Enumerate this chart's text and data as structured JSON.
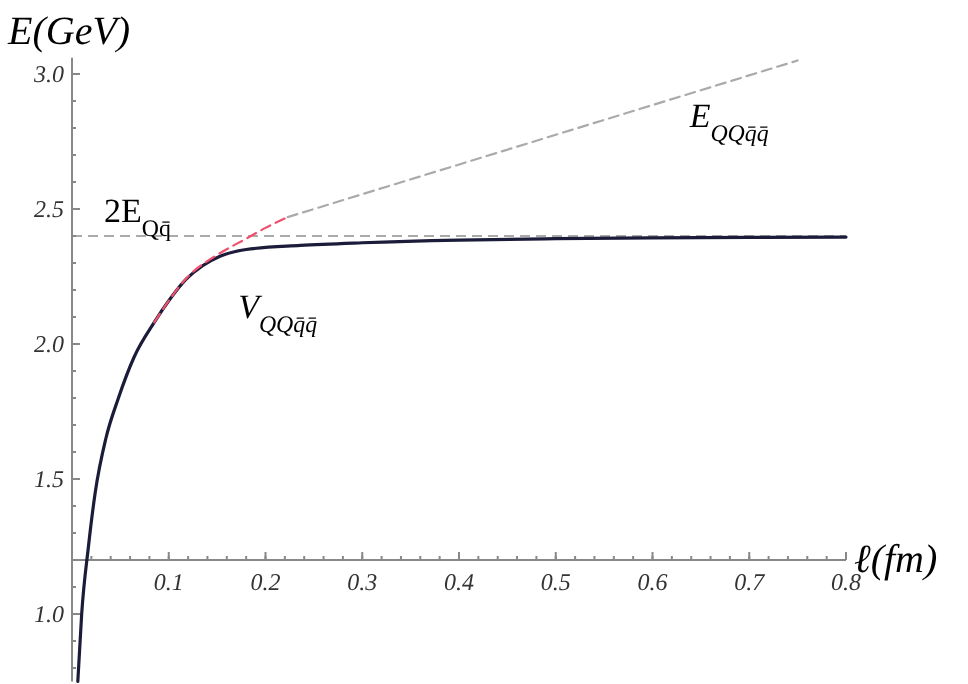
{
  "chart_data": {
    "type": "line",
    "xlabel": "ℓ(fm)",
    "ylabel": "E(GeV)",
    "xlim": [
      0,
      0.8
    ],
    "ylim": [
      0.75,
      3.06
    ],
    "xticks": [
      0.1,
      0.2,
      0.3,
      0.4,
      0.5,
      0.6,
      0.7,
      0.8
    ],
    "yticks": [
      {
        "value": 1,
        "label": "1.0"
      },
      1.5,
      {
        "value": 2,
        "label": "2.0"
      },
      2.5,
      {
        "value": 3,
        "label": "3.0"
      }
    ],
    "grid": false,
    "marker": "none",
    "ref_lines": [
      {
        "axis": "y",
        "value": 2.4,
        "label": "2E$_{Qq̄}$",
        "color": "#aaaaaa",
        "line_style": "dashed"
      }
    ],
    "series": [
      {
        "name": "V$_{QQq̄q̄}$",
        "color": "#1b1b3a",
        "line_style": "solid",
        "x": [
          0.006,
          0.01,
          0.017,
          0.024,
          0.035,
          0.048,
          0.064,
          0.085,
          0.1,
          0.118,
          0.135,
          0.153,
          0.18,
          0.236,
          0.3,
          0.4,
          0.5,
          0.6,
          0.7,
          0.8
        ],
        "values": [
          0.75,
          1.0,
          1.25,
          1.45,
          1.65,
          1.8,
          1.95,
          2.08,
          2.16,
          2.24,
          2.29,
          2.325,
          2.35,
          2.365,
          2.375,
          2.385,
          2.39,
          2.393,
          2.395,
          2.396
        ]
      },
      {
        "color": "#f0506e",
        "line_style": "dashed",
        "x": [
          0.085,
          0.12,
          0.15,
          0.18,
          0.2,
          0.223
        ],
        "values": [
          2.08,
          2.25,
          2.33,
          2.39,
          2.43,
          2.47
        ]
      },
      {
        "name": "E$_{QQq̄q̄}$",
        "color": "#aaaaaa",
        "line_style": "dashed",
        "x": [
          0.223,
          0.75
        ],
        "values": [
          2.47,
          3.05
        ]
      }
    ]
  }
}
